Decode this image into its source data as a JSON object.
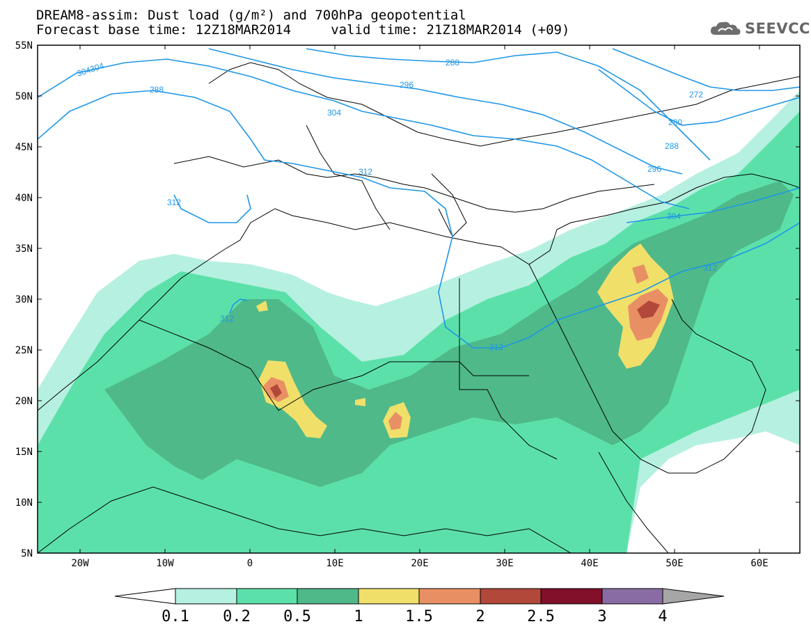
{
  "title": {
    "line1": "DREAM8-assim: Dust load (g/m²) and 700hPa geopotential",
    "line2": "Forecast base time: 12Z18MAR2014     valid time: 21Z18MAR2014 (+09)"
  },
  "logo": {
    "text": "SEEVCCC",
    "icon": "cloud-icon"
  },
  "axes": {
    "lat_labels": [
      "55N",
      "50N",
      "45N",
      "40N",
      "35N",
      "30N",
      "25N",
      "20N",
      "15N",
      "10N",
      "5N"
    ],
    "lon_labels": [
      "20W",
      "10W",
      "0",
      "10E",
      "20E",
      "30E",
      "40E",
      "50E",
      "60E"
    ]
  },
  "contour_labels": [
    "304",
    "304304",
    "288",
    "296",
    "312",
    "304",
    "272",
    "280",
    "288",
    "296",
    "312",
    "304",
    "312",
    "312",
    "312"
  ],
  "legend": {
    "ticks": [
      "0.1",
      "0.2",
      "0.5",
      "1",
      "1.5",
      "2",
      "2.5",
      "3",
      "4"
    ],
    "colors": [
      "#b6f0e0",
      "#5ce0aa",
      "#4fb98a",
      "#f0e06a",
      "#e89064",
      "#b2483a",
      "#82102a",
      "#8a6ca4"
    ],
    "over_color": "#a6a6a6",
    "under_color": "#ffffff"
  },
  "colors": {
    "geopotential": "#1e96e6",
    "coast": "#000000"
  }
}
